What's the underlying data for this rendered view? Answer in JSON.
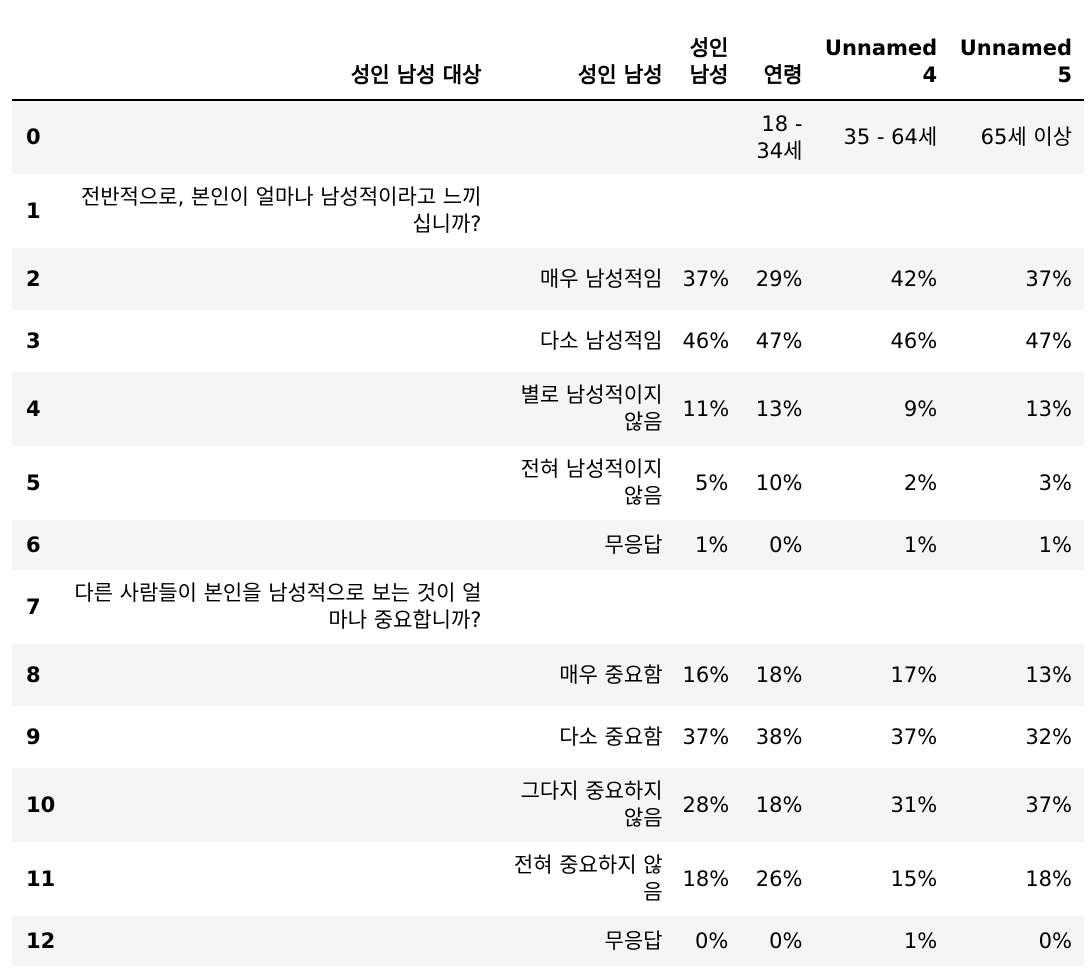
{
  "columns": [
    "",
    "성인 남성 대상",
    "성인 남성",
    "성인 남성",
    "연령",
    "Unnamed 4",
    "Unnamed 5"
  ],
  "rows": [
    {
      "index": "0",
      "c1": "",
      "c2": "",
      "c3": "",
      "c4": "18 - 34세",
      "c5": "35 - 64세",
      "c6": "65세 이상"
    },
    {
      "index": "1",
      "c1": "전반적으로, 본인이 얼마나 남성적이라고 느끼십니까?",
      "c2": "",
      "c3": "",
      "c4": "",
      "c5": "",
      "c6": ""
    },
    {
      "index": "2",
      "c1": "",
      "c2": "매우 남성적임",
      "c3": "37%",
      "c4": "29%",
      "c5": "42%",
      "c6": "37%"
    },
    {
      "index": "3",
      "c1": "",
      "c2": "다소 남성적임",
      "c3": "46%",
      "c4": "47%",
      "c5": "46%",
      "c6": "47%"
    },
    {
      "index": "4",
      "c1": "",
      "c2": "별로 남성적이지 않음",
      "c3": "11%",
      "c4": "13%",
      "c5": "9%",
      "c6": "13%"
    },
    {
      "index": "5",
      "c1": "",
      "c2": "전혀 남성적이지 않음",
      "c3": "5%",
      "c4": "10%",
      "c5": "2%",
      "c6": "3%"
    },
    {
      "index": "6",
      "c1": "",
      "c2": "무응답",
      "c3": "1%",
      "c4": "0%",
      "c5": "1%",
      "c6": "1%"
    },
    {
      "index": "7",
      "c1": "다른 사람들이 본인을 남성적으로 보는 것이 얼마나 중요합니까?",
      "c2": "",
      "c3": "",
      "c4": "",
      "c5": "",
      "c6": ""
    },
    {
      "index": "8",
      "c1": "",
      "c2": "매우 중요함",
      "c3": "16%",
      "c4": "18%",
      "c5": "17%",
      "c6": "13%"
    },
    {
      "index": "9",
      "c1": "",
      "c2": "다소 중요함",
      "c3": "37%",
      "c4": "38%",
      "c5": "37%",
      "c6": "32%"
    },
    {
      "index": "10",
      "c1": "",
      "c2": "그다지 중요하지 않음",
      "c3": "28%",
      "c4": "18%",
      "c5": "31%",
      "c6": "37%"
    },
    {
      "index": "11",
      "c1": "",
      "c2": "전혀 중요하지 않음",
      "c3": "18%",
      "c4": "26%",
      "c5": "15%",
      "c6": "18%"
    },
    {
      "index": "12",
      "c1": "",
      "c2": "무응답",
      "c3": "0%",
      "c4": "0%",
      "c5": "1%",
      "c6": "0%"
    }
  ]
}
